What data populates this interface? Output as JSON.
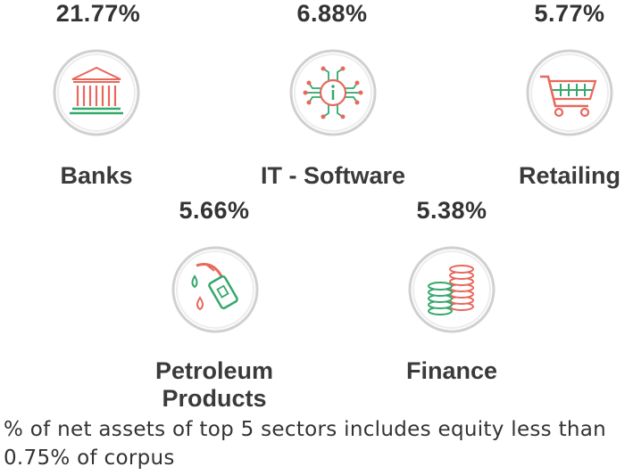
{
  "sectors": [
    {
      "name": "Banks",
      "percent": "21.77%",
      "icon": "bank-building-icon"
    },
    {
      "name": "IT - Software",
      "percent": "6.88%",
      "icon": "circuit-chip-icon"
    },
    {
      "name": "Retailing",
      "percent": "5.77%",
      "icon": "shopping-cart-icon"
    },
    {
      "name_line1": "Petroleum",
      "name_line2": "Products",
      "percent": "5.66%",
      "icon": "fuel-nozzle-icon"
    },
    {
      "name": "Finance",
      "percent": "5.38%",
      "icon": "coin-stacks-icon"
    }
  ],
  "note": "% of net assets of top 5 sectors includes equity less than 0.75% of corpus",
  "colors": {
    "accent_red": "#e8685c",
    "accent_green": "#35a86b",
    "circle": "#cfcfcf",
    "text": "#333333"
  }
}
